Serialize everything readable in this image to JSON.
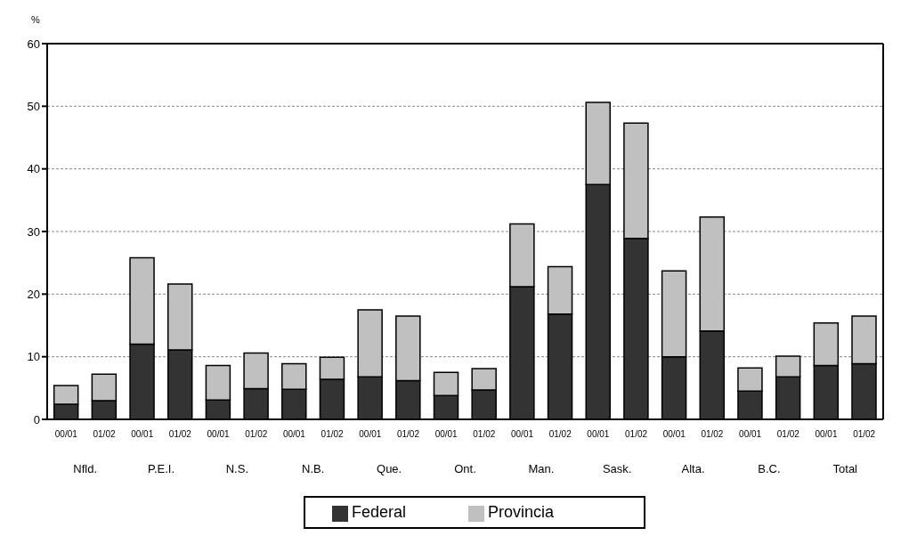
{
  "chart_data": {
    "type": "bar",
    "stacked": true,
    "ylabel": "%",
    "categories": [
      "00/01",
      "01/02",
      "00/01",
      "01/02",
      "00/01",
      "01/02",
      "00/01",
      "01/02",
      "00/01",
      "01/02",
      "00/01",
      "01/02",
      "00/01",
      "01/02",
      "00/01",
      "01/02",
      "00/01",
      "01/02",
      "00/01",
      "01/02",
      "00/01",
      "01/02"
    ],
    "annotations": [
      "Nfld.",
      "P.E.I.",
      "N.S.",
      "N.B.",
      "Que.",
      "Ont.",
      "Man.",
      "Sask.",
      "Alta.",
      "B.C.",
      "Total"
    ],
    "series": [
      {
        "name": "Federal",
        "color": "#333333",
        "values": [
          2.4,
          3.0,
          12.0,
          11.1,
          3.1,
          4.9,
          4.8,
          6.4,
          6.8,
          6.2,
          3.8,
          4.7,
          21.2,
          16.8,
          37.5,
          28.9,
          10.0,
          14.1,
          4.5,
          6.8,
          8.6,
          8.9
        ]
      },
      {
        "name": "Provincia",
        "color": "#c0c0c0",
        "values": [
          3.0,
          4.2,
          13.8,
          10.5,
          5.5,
          5.7,
          4.1,
          3.5,
          10.7,
          10.3,
          3.7,
          3.4,
          10.0,
          7.6,
          13.1,
          18.4,
          13.7,
          18.2,
          3.7,
          3.3,
          6.8,
          7.6
        ]
      }
    ],
    "ylim": [
      0,
      60
    ],
    "yticks": [
      0,
      10,
      20,
      30,
      40,
      50,
      60
    ],
    "grid": "y",
    "legend": "bottom"
  }
}
